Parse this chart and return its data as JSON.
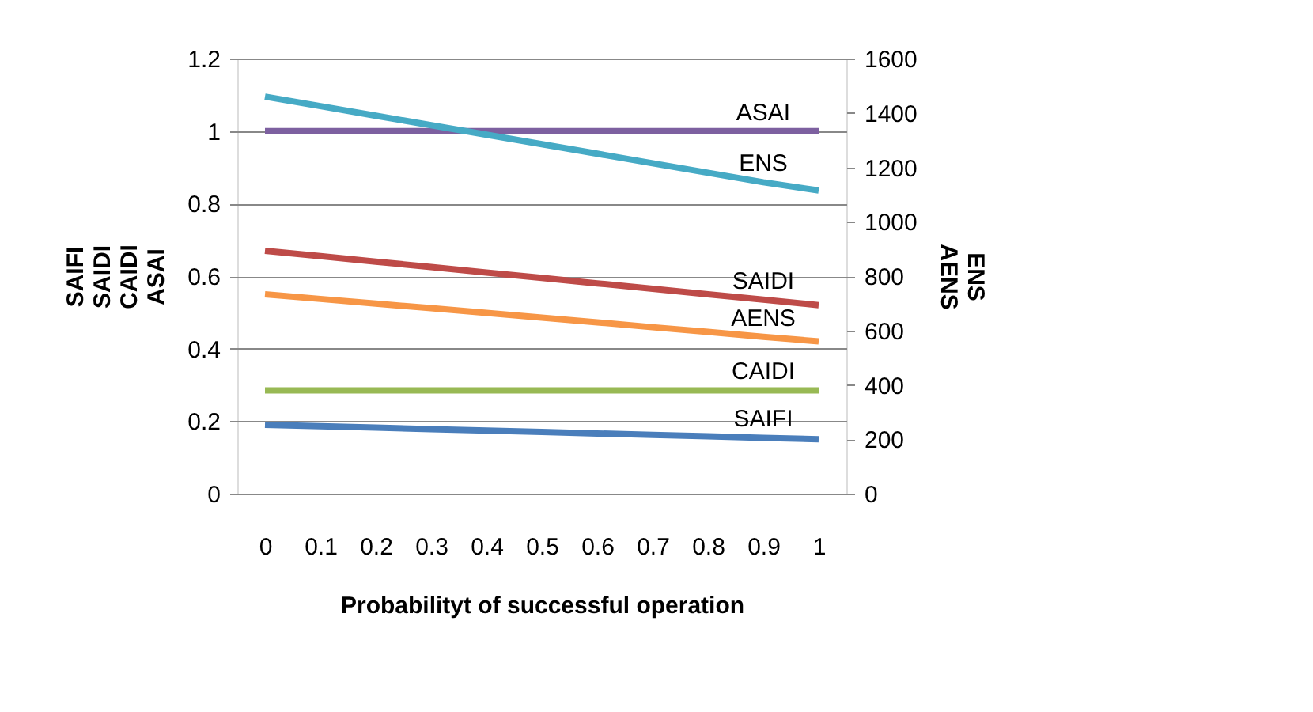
{
  "chart_data": {
    "type": "line",
    "xlabel": "Probabilityt of successful operation",
    "ylabel": "SAIFI\nSAIDI\nCAIDI\nASAI",
    "y2label": "ENS\nAENS",
    "categories": [
      "0",
      "0.1",
      "0.2",
      "0.3",
      "0.4",
      "0.5",
      "0.6",
      "0.7",
      "0.8",
      "0.9",
      "1"
    ],
    "series": [
      {
        "name": "SAIFI",
        "color": "#4a7ebb",
        "values": [
          0.19,
          0.186,
          0.182,
          0.178,
          0.174,
          0.17,
          0.166,
          0.162,
          0.158,
          0.154,
          0.15
        ]
      },
      {
        "name": "CAIDI",
        "color": "#98b954",
        "values": [
          0.285,
          0.285,
          0.285,
          0.285,
          0.285,
          0.285,
          0.285,
          0.285,
          0.285,
          0.285,
          0.285
        ]
      },
      {
        "name": "SAIDI",
        "color": "#be4b48",
        "values": [
          0.67,
          0.655,
          0.64,
          0.625,
          0.61,
          0.595,
          0.58,
          0.565,
          0.55,
          0.535,
          0.52
        ]
      },
      {
        "name": "ASAI",
        "color": "#7d60a0",
        "values": [
          1,
          1,
          1,
          1,
          1,
          1,
          1,
          1,
          1,
          1,
          1
        ]
      },
      {
        "name": "ENS",
        "color": "#46aac5",
        "axis": "y2",
        "values": [
          1460,
          1425,
          1390,
          1355,
          1320,
          1285,
          1250,
          1215,
          1180,
          1145,
          1115
        ]
      },
      {
        "name": "AENS",
        "color": "#f79646",
        "axis": "y2",
        "values": [
          733,
          716,
          699,
          682,
          665,
          647,
          630,
          612,
          595,
          577,
          560
        ]
      }
    ],
    "ylim": [
      0,
      1.2
    ],
    "yticks": [
      0,
      0.2,
      0.4,
      0.6,
      0.8,
      1,
      1.2
    ],
    "y2lim": [
      0,
      1600
    ],
    "y2ticks": [
      0,
      200,
      400,
      600,
      800,
      1000,
      1200,
      1400,
      1600
    ],
    "grid": "y",
    "legend": false,
    "marker": "none",
    "line_style": "solid"
  }
}
